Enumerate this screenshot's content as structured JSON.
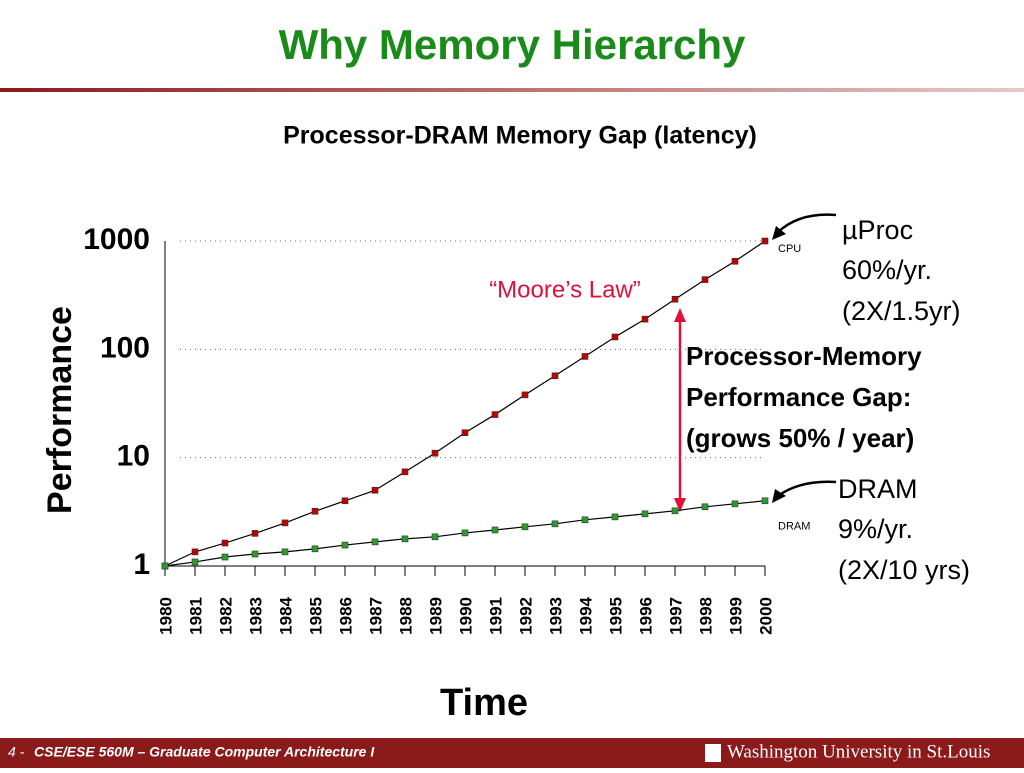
{
  "slide": {
    "title": "Why Memory Hierarchy",
    "page": "4 -",
    "course": "CSE/ESE 560M – Graduate Computer Architecture I",
    "institution": "Washington University in St.Louis"
  },
  "chart_data": {
    "type": "line",
    "title": "Processor-DRAM Memory Gap (latency)",
    "x_label": "Time",
    "y_label": "Performance",
    "x": [
      1980,
      1981,
      1982,
      1983,
      1984,
      1985,
      1986,
      1987,
      1988,
      1989,
      1990,
      1991,
      1992,
      1993,
      1994,
      1995,
      1996,
      1997,
      1998,
      1999,
      2000
    ],
    "series": [
      {
        "name": "CPU",
        "color": "#c00000",
        "values": [
          1,
          1.35,
          1.63,
          2,
          2.5,
          3.2,
          4,
          5,
          7.4,
          11,
          17,
          25,
          38,
          57,
          86,
          130,
          190,
          290,
          440,
          650,
          1000
        ]
      },
      {
        "name": "DRAM",
        "color": "#2e9b2e",
        "values": [
          1,
          1.09,
          1.21,
          1.29,
          1.35,
          1.44,
          1.56,
          1.67,
          1.78,
          1.86,
          2.02,
          2.15,
          2.3,
          2.45,
          2.67,
          2.84,
          3.03,
          3.23,
          3.52,
          3.75,
          4
        ]
      }
    ],
    "xlim": [
      1980,
      2000
    ],
    "xticks": [
      1980,
      1981,
      1982,
      1983,
      1984,
      1985,
      1986,
      1987,
      1988,
      1989,
      1990,
      1991,
      1992,
      1993,
      1994,
      1995,
      1996,
      1997,
      1998,
      1999,
      2000
    ],
    "ylim": [
      1,
      1000
    ],
    "yticks": [
      1,
      10,
      100,
      1000
    ],
    "log_y": true,
    "grid": true,
    "annotations": [
      "“Moore’s Law”",
      "µProc",
      "60%/yr.",
      "(2X/1.5yr)",
      "Processor-Memory",
      "Performance Gap:",
      "(grows 50% / year)",
      "DRAM",
      "9%/yr.",
      "(2X/10 yrs)"
    ]
  }
}
